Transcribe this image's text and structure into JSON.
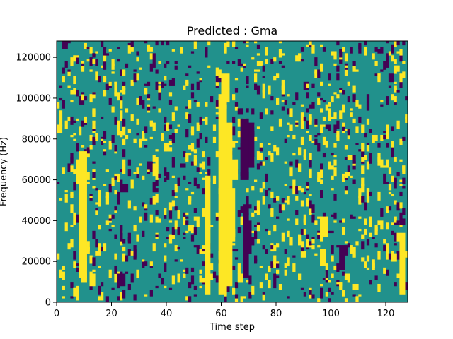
{
  "chart_data": {
    "type": "heatmap",
    "title": "Predicted : Gma",
    "xlabel": "Time step",
    "ylabel": "Frequency (Hz)",
    "xlim": [
      0,
      128
    ],
    "ylim": [
      0,
      128000
    ],
    "xticks": [
      0,
      20,
      40,
      60,
      80,
      100,
      120
    ],
    "yticks": [
      0,
      20000,
      40000,
      60000,
      80000,
      100000,
      120000
    ],
    "value_levels": [
      -1,
      0,
      1
    ],
    "colormap": {
      "-1": "#440154",
      "0": "#21918c",
      "1": "#fde725"
    },
    "background_value": 0,
    "n_time_steps": 128,
    "n_frequency_bins": 128,
    "frequency_bin_width_hz": 1000,
    "blocks": [
      {
        "value": 1,
        "t": [
          54,
          56
        ],
        "f": [
          4000,
          62000
        ]
      },
      {
        "value": 1,
        "t": [
          59,
          62
        ],
        "f": [
          4000,
          100000
        ]
      },
      {
        "value": 1,
        "t": [
          60,
          63
        ],
        "f": [
          100000,
          112000
        ]
      },
      {
        "value": 1,
        "t": [
          62,
          64
        ],
        "f": [
          8000,
          88000
        ]
      },
      {
        "value": 1,
        "t": [
          64,
          66
        ],
        "f": [
          60000,
          70000
        ]
      },
      {
        "value": 1,
        "t": [
          62,
          65
        ],
        "f": [
          30000,
          56000
        ]
      },
      {
        "value": 1,
        "t": [
          8,
          11
        ],
        "f": [
          12000,
          74000
        ]
      },
      {
        "value": 1,
        "t": [
          11,
          12
        ],
        "f": [
          24000,
          30000
        ]
      },
      {
        "value": 1,
        "t": [
          12,
          14
        ],
        "f": [
          8000,
          14000
        ]
      },
      {
        "value": 1,
        "t": [
          7,
          9
        ],
        "f": [
          58000,
          70000
        ]
      },
      {
        "value": 1,
        "t": [
          96,
          99
        ],
        "f": [
          32000,
          42000
        ]
      },
      {
        "value": 1,
        "t": [
          96,
          98
        ],
        "f": [
          18000,
          26000
        ]
      },
      {
        "value": 1,
        "t": [
          124,
          127
        ],
        "f": [
          30000,
          34000
        ]
      },
      {
        "value": 1,
        "t": [
          125,
          127
        ],
        "f": [
          4000,
          30000
        ]
      },
      {
        "value": 1,
        "t": [
          122,
          124
        ],
        "f": [
          20000,
          24000
        ]
      },
      {
        "value": -1,
        "t": [
          67,
          70
        ],
        "f": [
          60000,
          90000
        ]
      },
      {
        "value": -1,
        "t": [
          68,
          70
        ],
        "f": [
          12000,
          48000
        ]
      },
      {
        "value": -1,
        "t": [
          69,
          71
        ],
        "f": [
          24000,
          40000
        ]
      },
      {
        "value": -1,
        "t": [
          70,
          72
        ],
        "f": [
          66000,
          88000
        ]
      },
      {
        "value": -1,
        "t": [
          22,
          25
        ],
        "f": [
          8000,
          14000
        ]
      },
      {
        "value": -1,
        "t": [
          23,
          26
        ],
        "f": [
          54000,
          58000
        ]
      },
      {
        "value": -1,
        "t": [
          23,
          24
        ],
        "f": [
          30000,
          38000
        ]
      },
      {
        "value": -1,
        "t": [
          45,
          47
        ],
        "f": [
          66000,
          68000
        ]
      },
      {
        "value": -1,
        "t": [
          103,
          106
        ],
        "f": [
          24000,
          28000
        ]
      },
      {
        "value": -1,
        "t": [
          103,
          105
        ],
        "f": [
          16000,
          24000
        ]
      }
    ],
    "random_seed": 1337,
    "speckle_density": {
      "yellow": 0.045,
      "purple": 0.035
    },
    "speckle_cell_heights": [
      1,
      2,
      3,
      4
    ]
  }
}
